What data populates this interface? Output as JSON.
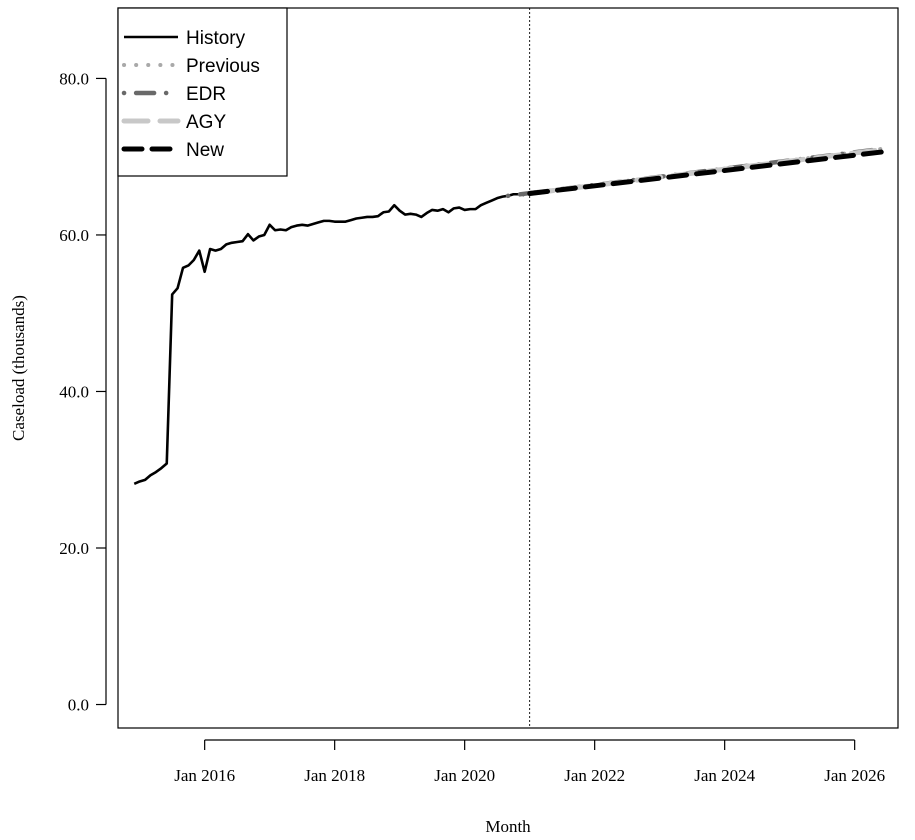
{
  "chart_data": {
    "type": "line",
    "title": "",
    "xlabel": "Month",
    "ylabel": "Caseload (thousands)",
    "xlim": [
      "2014-09",
      "2026-09"
    ],
    "ylim": [
      -3.0,
      89.0
    ],
    "x_ticks": [
      "2016-01",
      "2018-01",
      "2020-01",
      "2022-01",
      "2024-01",
      "2026-01"
    ],
    "x_tick_labels": [
      "Jan 2016",
      "Jan 2018",
      "Jan 2020",
      "Jan 2022",
      "Jan 2024",
      "Jan 2026"
    ],
    "y_ticks": [
      0,
      20,
      40,
      60,
      80
    ],
    "y_tick_labels": [
      "0.0",
      "20.0",
      "40.0",
      "60.0",
      "80.0"
    ],
    "forecast_start": "2021-01",
    "grid": false,
    "legend_position": "top-left",
    "series": [
      {
        "name": "History",
        "color": "#000000",
        "style": "solid",
        "x": [
          "2014-12",
          "2015-01",
          "2015-02",
          "2015-03",
          "2015-04",
          "2015-05",
          "2015-06",
          "2015-07",
          "2015-08",
          "2015-09",
          "2015-10",
          "2015-11",
          "2015-12",
          "2016-01",
          "2016-02",
          "2016-03",
          "2016-04",
          "2016-05",
          "2016-06",
          "2016-07",
          "2016-08",
          "2016-09",
          "2016-10",
          "2016-11",
          "2016-12",
          "2017-01",
          "2017-02",
          "2017-03",
          "2017-04",
          "2017-05",
          "2017-06",
          "2017-07",
          "2017-08",
          "2017-09",
          "2017-10",
          "2017-11",
          "2017-12",
          "2018-01",
          "2018-02",
          "2018-03",
          "2018-04",
          "2018-05",
          "2018-06",
          "2018-07",
          "2018-08",
          "2018-09",
          "2018-10",
          "2018-11",
          "2018-12",
          "2019-01",
          "2019-02",
          "2019-03",
          "2019-04",
          "2019-05",
          "2019-06",
          "2019-07",
          "2019-08",
          "2019-09",
          "2019-10",
          "2019-11",
          "2019-12",
          "2020-01",
          "2020-02",
          "2020-03",
          "2020-04",
          "2020-05",
          "2020-06",
          "2020-07",
          "2020-08",
          "2020-09",
          "2020-10",
          "2020-11",
          "2020-12"
        ],
        "values": [
          28.2,
          28.5,
          28.7,
          29.3,
          29.7,
          30.2,
          30.8,
          52.4,
          53.2,
          55.8,
          56.1,
          56.8,
          58.0,
          55.3,
          58.2,
          58.0,
          58.2,
          58.8,
          59.0,
          59.1,
          59.2,
          60.1,
          59.3,
          59.8,
          60.0,
          61.3,
          60.6,
          60.7,
          60.6,
          61.0,
          61.2,
          61.3,
          61.2,
          61.4,
          61.6,
          61.8,
          61.8,
          61.7,
          61.7,
          61.7,
          61.9,
          62.1,
          62.2,
          62.3,
          62.3,
          62.4,
          62.9,
          63.0,
          63.8,
          63.1,
          62.6,
          62.7,
          62.6,
          62.3,
          62.8,
          63.2,
          63.1,
          63.3,
          62.9,
          63.4,
          63.5,
          63.2,
          63.3,
          63.3,
          63.8,
          64.1,
          64.4,
          64.7,
          64.9,
          65.0,
          65.2,
          65.2,
          65.1
        ]
      },
      {
        "name": "Previous",
        "color": "#a9a9a9",
        "style": "dotted",
        "x": [
          "2020-09",
          "2026-06"
        ],
        "values": [
          65.0,
          71.0
        ]
      },
      {
        "name": "EDR",
        "color": "#696969",
        "style": "dotdash",
        "x": [
          "2020-09",
          "2026-06"
        ],
        "values": [
          65.0,
          71.0
        ]
      },
      {
        "name": "AGY",
        "color": "#c8c8c8",
        "style": "longdash",
        "x": [
          "2021-01",
          "2026-06"
        ],
        "values": [
          65.3,
          70.9
        ]
      },
      {
        "name": "New",
        "color": "#000000",
        "style": "dashed",
        "x": [
          "2021-01",
          "2026-06"
        ],
        "values": [
          65.3,
          70.6
        ]
      }
    ]
  }
}
